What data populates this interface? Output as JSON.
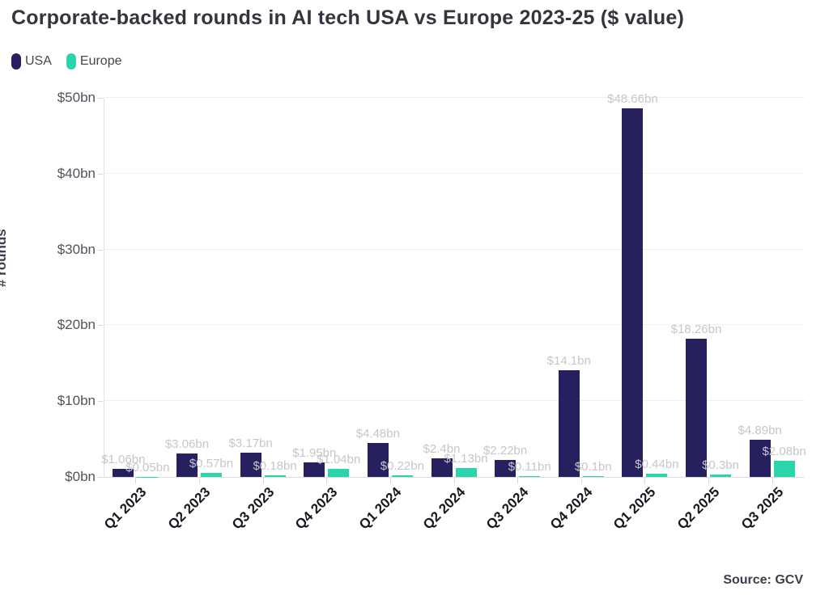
{
  "title": "Corporate-backed rounds in AI tech USA vs Europe 2023-25 ($ value)",
  "legend": [
    {
      "label": "USA",
      "color": "#27205f"
    },
    {
      "label": "Europe",
      "color": "#2bd4ab"
    }
  ],
  "source": "Source: GCV",
  "chart_data": {
    "type": "bar",
    "title": "Corporate-backed rounds in AI tech USA vs Europe 2023-25 ($ value)",
    "xlabel": "",
    "ylabel": "# rounds",
    "ylim": [
      0,
      50
    ],
    "grid": true,
    "legend_position": "top-left",
    "yticks": [
      {
        "value": 0,
        "label": "$0bn"
      },
      {
        "value": 10,
        "label": "$10bn"
      },
      {
        "value": 20,
        "label": "$20bn"
      },
      {
        "value": 30,
        "label": "$30bn"
      },
      {
        "value": 40,
        "label": "$40bn"
      },
      {
        "value": 50,
        "label": "$50bn"
      }
    ],
    "categories": [
      "Q1 2023",
      "Q2 2023",
      "Q3 2023",
      "Q4 2023",
      "Q1 2024",
      "Q2 2024",
      "Q3 2024",
      "Q4 2024",
      "Q1 2025",
      "Q2 2025",
      "Q3 2025"
    ],
    "series": [
      {
        "name": "USA",
        "color": "#27205f",
        "values": [
          1.06,
          3.06,
          3.17,
          1.95,
          4.48,
          2.4,
          2.22,
          14.1,
          48.66,
          18.26,
          4.89
        ],
        "labels": [
          "$1.06bn",
          "$3.06bn",
          "$3.17bn",
          "$1.95bn",
          "$4.48bn",
          "$2.4bn",
          "$2.22bn",
          "$14.1bn",
          "$48.66bn",
          "$18.26bn",
          "$4.89bn"
        ]
      },
      {
        "name": "Europe",
        "color": "#2bd4ab",
        "values": [
          0.05,
          0.57,
          0.18,
          1.04,
          0.22,
          1.13,
          0.11,
          0.1,
          0.44,
          0.3,
          2.08
        ],
        "labels": [
          "$0.05bn",
          "$0.57bn",
          "$0.18bn",
          "$1.04bn",
          "$0.22bn",
          "$1.13bn",
          "$0.11bn",
          "$0.1bn",
          "$0.44bn",
          "$0.3bn",
          "$2.08bn"
        ]
      }
    ]
  }
}
